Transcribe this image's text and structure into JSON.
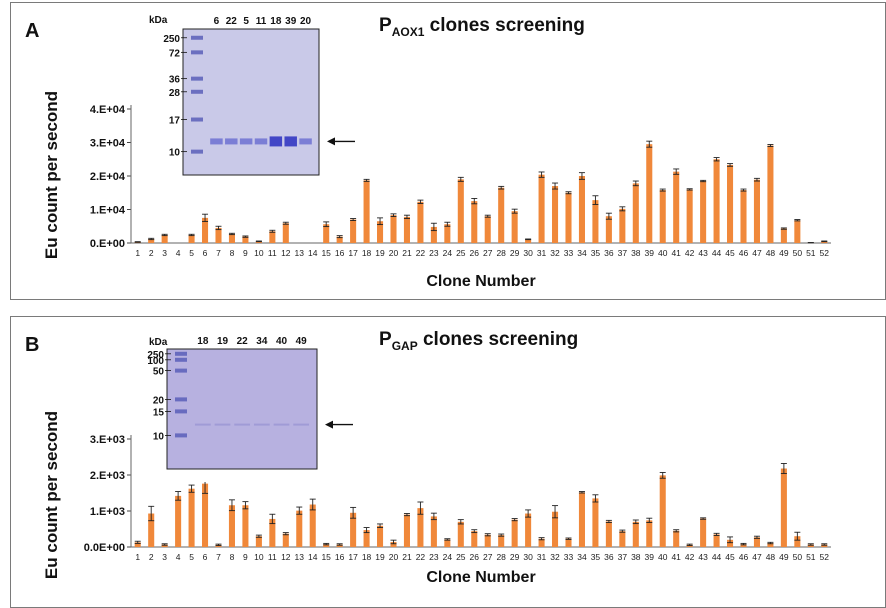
{
  "chart_data": [
    {
      "type": "bar",
      "panel_label": "A",
      "title_main": "P",
      "title_sub": "AOX1",
      "title_rest": " clones screening",
      "xlabel": "Clone Number",
      "ylabel": "Eu count per second",
      "y_ticks": [
        "0.E+00",
        "1.E+04",
        "2.E+04",
        "3.E+04",
        "4.E+04"
      ],
      "ylim": [
        0,
        40000
      ],
      "grid": false,
      "bar_color": "#f0883a",
      "categories": [
        "1",
        "2",
        "3",
        "4",
        "5",
        "6",
        "7",
        "8",
        "9",
        "10",
        "11",
        "12",
        "13",
        "14",
        "15",
        "16",
        "17",
        "18",
        "19",
        "20",
        "21",
        "22",
        "23",
        "24",
        "25",
        "26",
        "27",
        "28",
        "29",
        "30",
        "31",
        "32",
        "33",
        "34",
        "35",
        "36",
        "37",
        "38",
        "39",
        "40",
        "41",
        "42",
        "43",
        "44",
        "45",
        "46",
        "47",
        "48",
        "49",
        "50",
        "51",
        "52"
      ],
      "values": [
        300,
        1200,
        2400,
        0,
        2400,
        7500,
        4500,
        2700,
        1900,
        500,
        3500,
        5900,
        0,
        0,
        5600,
        1900,
        7000,
        18700,
        6500,
        8300,
        7800,
        12300,
        4800,
        5600,
        19000,
        12500,
        8000,
        16500,
        9500,
        1100,
        20400,
        17000,
        15000,
        20000,
        12800,
        8000,
        10200,
        17800,
        29500,
        15800,
        21300,
        16000,
        18500,
        25000,
        23300,
        15800,
        18900,
        29100,
        4300,
        6800,
        100,
        500
      ],
      "errors": [
        100,
        200,
        200,
        0,
        200,
        1100,
        500,
        200,
        200,
        100,
        300,
        300,
        0,
        0,
        700,
        300,
        300,
        300,
        1000,
        400,
        500,
        500,
        1100,
        600,
        600,
        800,
        300,
        400,
        600,
        100,
        800,
        900,
        300,
        1000,
        1300,
        900,
        600,
        700,
        900,
        300,
        800,
        200,
        200,
        500,
        400,
        300,
        400,
        300,
        200,
        200,
        50,
        100
      ],
      "inset": {
        "units_label": "kDa",
        "ladder_labels": [
          "250",
          "72",
          "36",
          "28",
          "17",
          "10"
        ],
        "lane_labels": [
          "6",
          "22",
          "5",
          "11",
          "18",
          "39",
          "20"
        ],
        "gel_color": "#c9c9e8"
      }
    },
    {
      "type": "bar",
      "panel_label": "B",
      "title_main": "P",
      "title_sub": "GAP",
      "title_rest": " clones screening",
      "xlabel": "Clone Number",
      "ylabel": "Eu count per second",
      "y_ticks": [
        "0.0E+00",
        "1.E+03",
        "2.E+03",
        "3.E+03"
      ],
      "ylim": [
        0,
        3000
      ],
      "grid": false,
      "bar_color": "#f0883a",
      "categories": [
        "1",
        "2",
        "3",
        "4",
        "5",
        "6",
        "7",
        "8",
        "9",
        "10",
        "11",
        "12",
        "13",
        "14",
        "15",
        "16",
        "17",
        "18",
        "19",
        "20",
        "21",
        "22",
        "23",
        "24",
        "25",
        "26",
        "27",
        "28",
        "29",
        "30",
        "31",
        "32",
        "33",
        "34",
        "35",
        "36",
        "37",
        "38",
        "39",
        "40",
        "41",
        "42",
        "43",
        "44",
        "45",
        "46",
        "47",
        "48",
        "49",
        "50",
        "51",
        "52"
      ],
      "values": [
        130,
        930,
        70,
        1420,
        1620,
        1760,
        60,
        1160,
        1160,
        300,
        780,
        370,
        1010,
        1180,
        80,
        70,
        950,
        470,
        590,
        140,
        900,
        1080,
        850,
        210,
        700,
        440,
        340,
        330,
        760,
        930,
        230,
        980,
        230,
        1520,
        1350,
        710,
        440,
        700,
        740,
        1990,
        450,
        60,
        790,
        350,
        200,
        80,
        270,
        110,
        2180,
        300,
        70,
        70
      ],
      "errors": [
        30,
        200,
        20,
        120,
        100,
        270,
        20,
        150,
        100,
        30,
        130,
        30,
        100,
        150,
        20,
        20,
        150,
        70,
        50,
        50,
        30,
        170,
        90,
        20,
        60,
        40,
        30,
        30,
        30,
        100,
        30,
        170,
        20,
        20,
        100,
        30,
        30,
        50,
        60,
        80,
        30,
        20,
        20,
        30,
        80,
        20,
        30,
        20,
        140,
        110,
        20,
        20
      ],
      "inset": {
        "units_label": "kDa",
        "ladder_labels": [
          "250",
          "100",
          "50",
          "20",
          "15",
          "10"
        ],
        "lane_labels": [
          "18",
          "19",
          "22",
          "34",
          "40",
          "49"
        ],
        "gel_color": "#b7b1e0"
      }
    }
  ]
}
